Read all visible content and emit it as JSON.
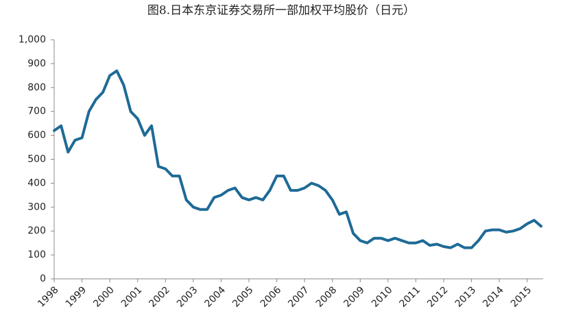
{
  "chart_data": {
    "type": "line",
    "title": "图8.日本东京证券交易所一部加权平均股价（日元）",
    "categories": [
      "1998",
      null,
      null,
      null,
      "1999",
      null,
      null,
      null,
      "2000",
      null,
      null,
      null,
      "2001",
      null,
      null,
      null,
      "2002",
      null,
      null,
      null,
      "2003",
      null,
      null,
      null,
      "2004",
      null,
      null,
      null,
      "2005",
      null,
      null,
      null,
      "2006",
      null,
      null,
      null,
      "2007",
      null,
      null,
      null,
      "2008",
      null,
      null,
      null,
      "2009",
      null,
      null,
      null,
      "2010",
      null,
      null,
      null,
      "2011",
      null,
      null,
      null,
      "2012",
      null,
      null,
      null,
      "2013",
      null,
      null,
      null,
      "2014",
      null,
      null,
      null,
      "2015",
      null,
      null
    ],
    "values": [
      620,
      640,
      530,
      580,
      590,
      700,
      750,
      780,
      850,
      870,
      810,
      700,
      670,
      600,
      640,
      470,
      460,
      430,
      430,
      330,
      300,
      290,
      290,
      340,
      350,
      370,
      380,
      340,
      330,
      340,
      330,
      370,
      430,
      430,
      370,
      370,
      380,
      400,
      390,
      370,
      330,
      270,
      280,
      190,
      160,
      150,
      170,
      170,
      160,
      170,
      160,
      150,
      150,
      160,
      140,
      145,
      135,
      130,
      145,
      130,
      130,
      160,
      200,
      205,
      205,
      195,
      200,
      210,
      230,
      245,
      220
    ],
    "color": "#1e6a96",
    "ylim": [
      0,
      1000
    ],
    "yticks": [
      0,
      100,
      200,
      300,
      400,
      500,
      600,
      700,
      800,
      900,
      {
        "value": 1000,
        "label": "1,000"
      }
    ],
    "grid": false
  }
}
